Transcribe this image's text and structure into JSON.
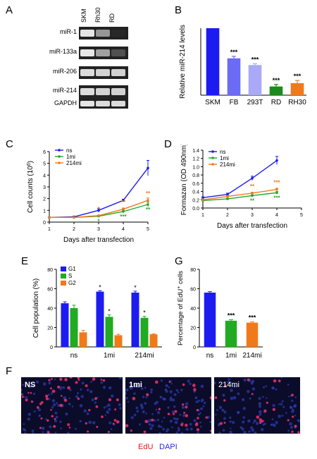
{
  "panels": {
    "A": {
      "letter": "A",
      "lanes": [
        "SKM",
        "Rh30",
        "RD"
      ],
      "rows": [
        "miR-1",
        "miR-133a",
        "miR-206",
        "miR-214",
        "GAPDH"
      ],
      "band_intensity": [
        [
          0.95,
          0.55,
          0.0
        ],
        [
          0.95,
          0.6,
          0.2
        ],
        [
          0.9,
          0.85,
          0.85
        ],
        [
          0.9,
          0.85,
          0.85
        ],
        [
          0.95,
          0.9,
          0.9
        ]
      ]
    },
    "B": {
      "letter": "B",
      "chart_data": {
        "type": "bar",
        "categories": [
          "SKM",
          "FB",
          "293T",
          "RD",
          "RH30"
        ],
        "values": [
          1.0,
          0.55,
          0.45,
          0.13,
          0.18
        ],
        "errors": [
          0,
          0.03,
          0.02,
          0.03,
          0.04
        ],
        "significance": [
          "",
          "***",
          "***",
          "***",
          "***"
        ],
        "colors": [
          "#1c1cf0",
          "#6b6bf5",
          "#a9a9f7",
          "#1b8c1b",
          "#f07a1a"
        ],
        "ylabel": "Relative miR-214 levels",
        "ylim": [
          0,
          1.2
        ]
      }
    },
    "C": {
      "letter": "C",
      "chart_data": {
        "type": "line",
        "x": [
          1,
          2,
          3,
          4,
          5
        ],
        "series": [
          {
            "name": "ns",
            "color": "#1c1cf0",
            "values": [
              0.4,
              0.45,
              1.0,
              1.85,
              4.6
            ],
            "errors": [
              0.05,
              0.05,
              0.15,
              0.1,
              0.65
            ]
          },
          {
            "name": "1mi",
            "color": "#22aa22",
            "values": [
              0.4,
              0.4,
              0.5,
              0.9,
              1.5
            ],
            "errors": [
              0.05,
              0.05,
              0.05,
              0.1,
              0.2
            ]
          },
          {
            "name": "214mi",
            "color": "#f07a1a",
            "values": [
              0.4,
              0.4,
              0.55,
              1.1,
              1.85
            ],
            "errors": [
              0.05,
              0.05,
              0.05,
              0.1,
              0.2
            ]
          }
        ],
        "annotations": [
          {
            "x": 3,
            "text": "*",
            "series": "214mi"
          },
          {
            "x": 3,
            "text": "*",
            "series": "1mi"
          },
          {
            "x": 4,
            "text": "**",
            "series": "214mi"
          },
          {
            "x": 4,
            "text": "***",
            "series": "1mi"
          },
          {
            "x": 5,
            "text": "**",
            "series": "214mi"
          },
          {
            "x": 5,
            "text": "**",
            "series": "1mi"
          }
        ],
        "xlabel": "Days after transfection",
        "ylabel": "Cell counts (10",
        "ylabel_sup": "6",
        "ylabel_end": ")",
        "xlim": [
          1,
          5
        ],
        "ylim": [
          0,
          6
        ],
        "yticks": [
          0,
          1,
          2,
          3,
          4,
          5,
          6
        ],
        "xticks": [
          1,
          2,
          3,
          4,
          5
        ],
        "legend": "top-left"
      }
    },
    "D": {
      "letter": "D",
      "chart_data": {
        "type": "line",
        "x": [
          1,
          2,
          3,
          4
        ],
        "series": [
          {
            "name": "ns",
            "color": "#1c1cf0",
            "values": [
              0.25,
              0.33,
              0.72,
              1.15
            ],
            "errors": [
              0.02,
              0.03,
              0.05,
              0.1
            ]
          },
          {
            "name": "1mi",
            "color": "#22aa22",
            "values": [
              0.18,
              0.22,
              0.3,
              0.37
            ],
            "errors": [
              0.02,
              0.02,
              0.02,
              0.03
            ]
          },
          {
            "name": "214mi",
            "color": "#f07a1a",
            "values": [
              0.2,
              0.28,
              0.36,
              0.45
            ],
            "errors": [
              0.02,
              0.02,
              0.02,
              0.03
            ]
          }
        ],
        "annotations": [
          {
            "x": 3,
            "text": "**",
            "series": "214mi"
          },
          {
            "x": 3,
            "text": "**",
            "series": "1mi"
          },
          {
            "x": 4,
            "text": "***",
            "series": "214mi"
          },
          {
            "x": 4,
            "text": "***",
            "series": "1mi"
          }
        ],
        "xlabel": "Days after transfection",
        "ylabel": "Formazan (OD 490nm)",
        "xlim": [
          1,
          5
        ],
        "ylim": [
          0,
          1.4
        ],
        "yticks": [
          0,
          0.2,
          0.4,
          0.6,
          0.8,
          1.0,
          1.2,
          1.4
        ],
        "xticks": [
          1,
          2,
          3,
          4,
          5
        ],
        "legend": "top-left"
      }
    },
    "E": {
      "letter": "E",
      "chart_data": {
        "type": "bar",
        "categories": [
          "ns",
          "1mi",
          "214mi"
        ],
        "series": [
          {
            "name": "G1",
            "color": "#1c1cf0",
            "values": [
              45,
              57,
              56
            ],
            "errors": [
              1.5,
              1,
              1.5
            ]
          },
          {
            "name": "S",
            "color": "#22aa22",
            "values": [
              40,
              31,
              30
            ],
            "errors": [
              3,
              2,
              1.5
            ]
          },
          {
            "name": "G2",
            "color": "#f07a1a",
            "values": [
              15,
              12,
              13
            ],
            "errors": [
              2,
              1,
              0.5
            ]
          }
        ],
        "significance": [
          [
            "",
            "",
            ""
          ],
          [
            "*",
            "*",
            ""
          ],
          [
            "*",
            "*",
            ""
          ]
        ],
        "ylabel": "Cell population (%)",
        "ylim": [
          0,
          80
        ],
        "yticks": [
          0,
          20,
          40,
          60,
          80
        ],
        "legend": "top-left"
      }
    },
    "G": {
      "letter": "G",
      "chart_data": {
        "type": "bar",
        "categories": [
          "ns",
          "1mi",
          "214mi"
        ],
        "values": [
          56,
          27,
          25
        ],
        "errors": [
          1,
          1,
          0.8
        ],
        "significance": [
          "",
          "***",
          "***"
        ],
        "colors": [
          "#1c1cf0",
          "#22aa22",
          "#f07a1a"
        ],
        "ylabel": "Percentage of EdU",
        "ylabel_sup": "+",
        "ylabel_end": " cells",
        "ylim": [
          0,
          80
        ],
        "yticks": [
          0,
          20,
          40,
          60,
          80
        ]
      }
    },
    "F": {
      "letter": "F",
      "images": [
        "NS",
        "1mi",
        "214mi"
      ],
      "legend": [
        {
          "label": "EdU",
          "color": "#e21b1b"
        },
        {
          "label": "DAPI",
          "color": "#2a2ad6"
        }
      ]
    }
  }
}
